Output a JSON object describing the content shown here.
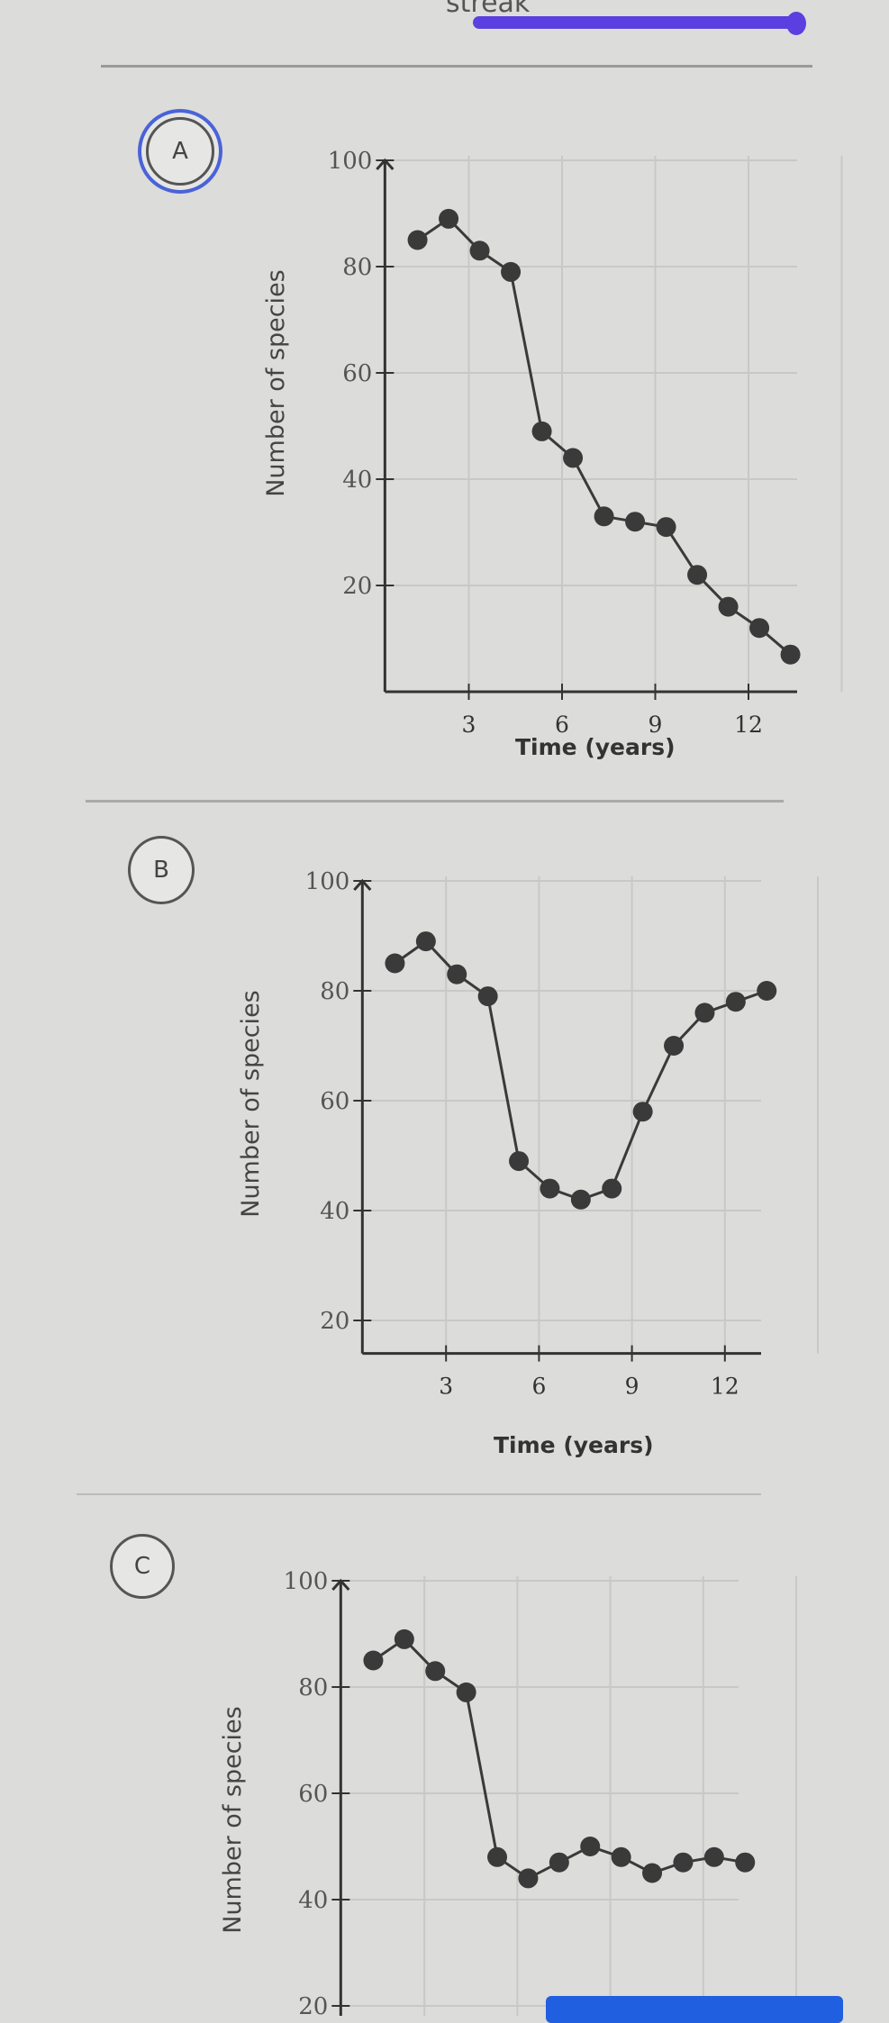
{
  "header": {
    "streak_label": "streak",
    "progress_fraction": 0.9,
    "accent_color": "#5b3fe0"
  },
  "choices": [
    {
      "letter": "A",
      "selected": true
    },
    {
      "letter": "B",
      "selected": false
    },
    {
      "letter": "C",
      "selected": false
    }
  ],
  "chart_data": [
    {
      "type": "line",
      "xlabel": "Time (years)",
      "ylabel": "Number of species",
      "x": [
        1,
        2,
        3,
        4,
        5,
        6,
        7,
        8,
        9,
        10,
        11,
        12,
        13
      ],
      "values": [
        85,
        89,
        83,
        79,
        49,
        44,
        33,
        32,
        31,
        22,
        16,
        12,
        7
      ],
      "xticks": [
        3,
        6,
        9,
        12
      ],
      "yticks": [
        20,
        40,
        60,
        80,
        100
      ],
      "ylim": [
        0,
        100
      ],
      "xlim": [
        0,
        15
      ],
      "grid": true
    },
    {
      "type": "line",
      "xlabel": "Time (years)",
      "ylabel": "Number of species",
      "x": [
        1,
        2,
        3,
        4,
        5,
        6,
        7,
        8,
        9,
        10,
        11,
        12,
        13
      ],
      "values": [
        85,
        89,
        83,
        79,
        49,
        44,
        42,
        44,
        58,
        70,
        76,
        78,
        80
      ],
      "xticks": [
        3,
        6,
        9,
        12
      ],
      "yticks": [
        20,
        40,
        60,
        80,
        100
      ],
      "ylim": [
        0,
        100
      ],
      "xlim": [
        0,
        15
      ],
      "grid": true
    },
    {
      "type": "line",
      "xlabel": "",
      "ylabel": "Number of species",
      "x": [
        1,
        2,
        3,
        4,
        5,
        6,
        7,
        8,
        9,
        10,
        11,
        12,
        13
      ],
      "values": [
        85,
        89,
        83,
        79,
        48,
        44,
        47,
        50,
        48,
        45,
        47,
        48,
        47
      ],
      "xticks": [],
      "yticks": [
        20,
        40,
        60,
        80,
        100
      ],
      "ylim": [
        0,
        100
      ],
      "xlim": [
        0,
        15
      ],
      "grid": true
    }
  ],
  "footer": {
    "button_color": "#1f5fe0"
  }
}
